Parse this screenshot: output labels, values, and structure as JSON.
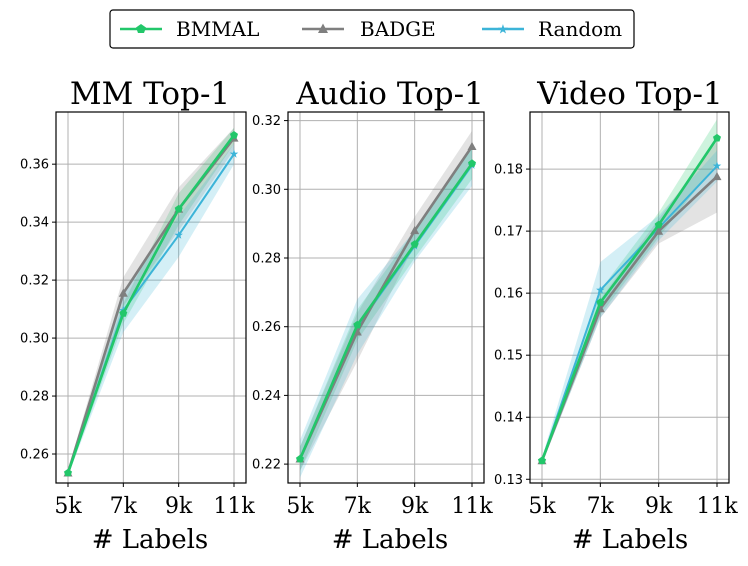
{
  "legend": {
    "placement": "top-center",
    "entries": [
      {
        "name": "BMMAL",
        "color": "#22c76a",
        "marker": "pentagon"
      },
      {
        "name": "BADGE",
        "color": "#7f7f7f",
        "marker": "triangle"
      },
      {
        "name": "Random",
        "color": "#3cb4d8",
        "marker": "star"
      }
    ]
  },
  "chart_data": [
    {
      "type": "line",
      "title": "MM Top-1",
      "xlabel": "# Labels",
      "categories": [
        "5k",
        "7k",
        "9k",
        "11k"
      ],
      "ylim": [
        0.25,
        0.378
      ],
      "yticks": [
        "0.26",
        "0.28",
        "0.30",
        "0.32",
        "0.34",
        "0.36"
      ],
      "grid": true,
      "series": [
        {
          "name": "BMMAL",
          "values": [
            0.2535,
            0.3085,
            0.3445,
            0.37
          ],
          "band": [
            [
              0.2525,
              0.2545
            ],
            [
              0.305,
              0.312
            ],
            [
              0.339,
              0.35
            ],
            [
              0.367,
              0.3725
            ]
          ]
        },
        {
          "name": "BADGE",
          "values": [
            0.2535,
            0.3155,
            0.3445,
            0.369
          ],
          "band": [
            [
              0.2525,
              0.2545
            ],
            [
              0.311,
              0.321
            ],
            [
              0.337,
              0.352
            ],
            [
              0.365,
              0.3725
            ]
          ]
        },
        {
          "name": "Random",
          "values": [
            0.2535,
            0.3095,
            0.3355,
            0.3635
          ],
          "band": [
            [
              0.2525,
              0.2545
            ],
            [
              0.302,
              0.316
            ],
            [
              0.328,
              0.342
            ],
            [
              0.36,
              0.367
            ]
          ]
        }
      ]
    },
    {
      "type": "line",
      "title": "Audio Top-1",
      "xlabel": "",
      "categories": [
        "5k",
        "7k",
        "9k",
        "11k"
      ],
      "ylim": [
        0.2145,
        0.3225
      ],
      "yticks": [
        "0.22",
        "0.24",
        "0.26",
        "0.28",
        "0.30",
        "0.32"
      ],
      "grid": true,
      "series": [
        {
          "name": "BMMAL",
          "values": [
            0.2215,
            0.2605,
            0.284,
            0.3075
          ],
          "band": [
            [
              0.218,
              0.225
            ],
            [
              0.256,
              0.265
            ],
            [
              0.28,
              0.288
            ],
            [
              0.303,
              0.312
            ]
          ]
        },
        {
          "name": "BADGE",
          "values": [
            0.2215,
            0.2585,
            0.288,
            0.3125
          ],
          "band": [
            [
              0.218,
              0.225
            ],
            [
              0.25,
              0.264
            ],
            [
              0.284,
              0.292
            ],
            [
              0.308,
              0.317
            ]
          ]
        },
        {
          "name": "Random",
          "values": [
            0.2215,
            0.26,
            0.2835,
            0.307
          ],
          "band": [
            [
              0.216,
              0.227
            ],
            [
              0.252,
              0.268
            ],
            [
              0.279,
              0.288
            ],
            [
              0.301,
              0.313
            ]
          ]
        }
      ]
    },
    {
      "type": "line",
      "title": "Video Top-1",
      "xlabel": "",
      "categories": [
        "5k",
        "7k",
        "9k",
        "11k"
      ],
      "ylim": [
        0.1294,
        0.1892
      ],
      "yticks": [
        "0.13",
        "0.14",
        "0.15",
        "0.16",
        "0.17",
        "0.18"
      ],
      "grid": true,
      "series": [
        {
          "name": "BMMAL",
          "values": [
            0.133,
            0.1585,
            0.171,
            0.185
          ],
          "band": [
            [
              0.1325,
              0.1335
            ],
            [
              0.1565,
              0.1605
            ],
            [
              0.169,
              0.173
            ],
            [
              0.181,
              0.188
            ]
          ]
        },
        {
          "name": "BADGE",
          "values": [
            0.133,
            0.1575,
            0.17,
            0.1788
          ],
          "band": [
            [
              0.1325,
              0.1335
            ],
            [
              0.156,
              0.159
            ],
            [
              0.168,
              0.172
            ],
            [
              0.173,
              0.1845
            ]
          ]
        },
        {
          "name": "Random",
          "values": [
            0.133,
            0.1605,
            0.1705,
            0.1805
          ],
          "band": [
            [
              0.1325,
              0.1335
            ],
            [
              0.156,
              0.165
            ],
            [
              0.1685,
              0.1725
            ],
            [
              0.178,
              0.183
            ]
          ]
        }
      ]
    }
  ]
}
